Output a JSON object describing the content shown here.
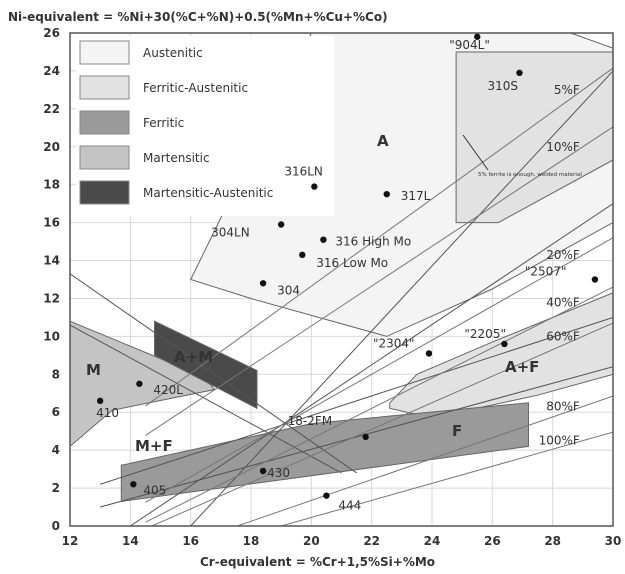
{
  "chart_data": {
    "type": "scatter",
    "title": "Ni-equivalent = %Ni+30(%C+%N)+0.5(%Mn+%Cu+%Co)",
    "xlabel": "Cr-equivalent = %Cr+1,5%Si+%Mo",
    "xlim": [
      12,
      30
    ],
    "ylim": [
      0,
      26
    ],
    "x_ticks": [
      "12",
      "14",
      "16",
      "18",
      "20",
      "22",
      "24",
      "26",
      "28",
      "30"
    ],
    "y_ticks": [
      "0",
      "2",
      "4",
      "6",
      "8",
      "10",
      "12",
      "14",
      "16",
      "18",
      "20",
      "22",
      "24",
      "26"
    ],
    "grid": true,
    "legend_position": "top-left",
    "legend": [
      {
        "name": "Austenitic",
        "color": "#f4f4f4"
      },
      {
        "name": "Ferritic-Austenitic",
        "color": "#e2e2e2"
      },
      {
        "name": "Ferritic",
        "color": "#9a9a9a"
      },
      {
        "name": "Martensitic",
        "color": "#c4c4c4"
      },
      {
        "name": "Martensitic-Austenitic",
        "color": "#4a4a4a"
      }
    ],
    "points": [
      {
        "label": "\"904L\"",
        "x": 25.5,
        "y": 25.8
      },
      {
        "label": "310S",
        "x": 26.9,
        "y": 23.9
      },
      {
        "label": "316LN",
        "x": 20.1,
        "y": 17.9
      },
      {
        "label": "317L",
        "x": 22.5,
        "y": 17.5
      },
      {
        "label": "304LN",
        "x": 19.0,
        "y": 15.9
      },
      {
        "label": "316 High Mo",
        "x": 20.4,
        "y": 15.1
      },
      {
        "label": "316 Low Mo",
        "x": 19.7,
        "y": 14.3
      },
      {
        "label": "304",
        "x": 18.4,
        "y": 12.8
      },
      {
        "label": "\"2507\"",
        "x": 29.4,
        "y": 13.0
      },
      {
        "label": "\"2304\"",
        "x": 23.9,
        "y": 9.1
      },
      {
        "label": "\"2205\"",
        "x": 26.4,
        "y": 9.6
      },
      {
        "label": "420L",
        "x": 14.3,
        "y": 7.5
      },
      {
        "label": "410",
        "x": 13.0,
        "y": 6.6
      },
      {
        "label": "18-2FM",
        "x": 21.8,
        "y": 4.7
      },
      {
        "label": "430",
        "x": 18.4,
        "y": 2.9
      },
      {
        "label": "405",
        "x": 14.1,
        "y": 2.2
      },
      {
        "label": "444",
        "x": 20.5,
        "y": 1.6
      }
    ],
    "ferrite_lines": [
      {
        "label": "5%F",
        "y_at_29": 23.0
      },
      {
        "label": "10%F",
        "y_at_29": 20.0
      },
      {
        "label": "20%F",
        "y_at_29": 14.3
      },
      {
        "label": "40%F",
        "y_at_29": 11.8
      },
      {
        "label": "60%F",
        "y_at_29": 10.0
      },
      {
        "label": "80%F",
        "y_at_29": 6.3
      },
      {
        "label": "100%F",
        "y_at_29": 4.5
      }
    ],
    "region_labels": [
      "A",
      "A+M",
      "M",
      "M+F",
      "A+F",
      "F"
    ],
    "annotation": "5% ferrite is enough, welded material"
  }
}
